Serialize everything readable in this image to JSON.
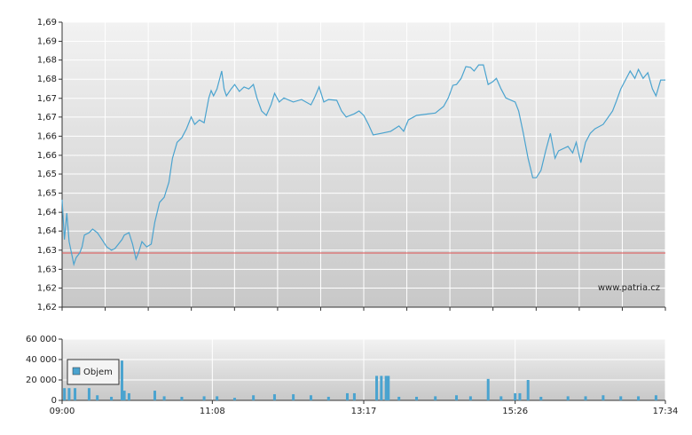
{
  "chart_data": [
    {
      "type": "line",
      "color": "#4aa3cf",
      "annotation": "www.patria.cz",
      "reference_line": {
        "value": 1.6333,
        "color": "#e05050"
      },
      "xlim": [
        540,
        1054
      ],
      "xgrid": [
        540,
        576.7,
        613.4,
        650.1,
        686.9,
        723.6,
        760.3,
        797,
        833.7,
        870.4,
        907.1,
        943.9,
        980.6,
        1017.3,
        1054
      ],
      "ylim": [
        1.62,
        1.69
      ],
      "yticks": [
        {
          "value": 1.62,
          "label": "1,62"
        },
        {
          "value": 1.6247,
          "label": "1,62"
        },
        {
          "value": 1.6293,
          "label": "1,63"
        },
        {
          "value": 1.634,
          "label": "1,63"
        },
        {
          "value": 1.6387,
          "label": "1,64"
        },
        {
          "value": 1.6433,
          "label": "1,64"
        },
        {
          "value": 1.648,
          "label": "1,65"
        },
        {
          "value": 1.6527,
          "label": "1,65"
        },
        {
          "value": 1.6573,
          "label": "1,66"
        },
        {
          "value": 1.662,
          "label": "1,66"
        },
        {
          "value": 1.6667,
          "label": "1,67"
        },
        {
          "value": 1.6713,
          "label": "1,67"
        },
        {
          "value": 1.676,
          "label": "1,68"
        },
        {
          "value": 1.6807,
          "label": "1,68"
        },
        {
          "value": 1.6853,
          "label": "1,69"
        },
        {
          "value": 1.69,
          "label": "1,69"
        }
      ],
      "x": [
        540,
        542,
        544,
        546,
        548,
        550,
        552,
        555,
        557,
        559,
        563,
        566,
        570,
        574,
        578,
        582,
        585,
        591,
        593,
        597,
        600,
        603,
        605,
        608,
        612,
        616,
        619,
        623,
        627,
        631,
        634,
        638,
        642,
        646,
        650,
        653,
        657,
        661,
        665,
        667,
        669,
        672,
        676,
        678,
        680,
        684,
        687,
        691,
        695,
        699,
        703,
        706,
        710,
        714,
        718,
        721,
        725,
        729,
        737,
        744,
        752,
        755,
        759,
        763,
        767,
        774,
        778,
        782,
        789,
        793,
        797,
        801,
        805,
        812,
        820,
        827,
        831,
        835,
        842,
        858,
        865,
        869,
        873,
        876,
        880,
        884,
        888,
        891,
        895,
        899,
        903,
        907,
        910,
        914,
        918,
        926,
        929,
        933,
        937,
        941,
        944,
        948,
        952,
        956,
        960,
        963,
        971,
        975,
        978,
        982,
        986,
        990,
        994,
        1001,
        1009,
        1012,
        1016,
        1020,
        1024,
        1028,
        1031,
        1035,
        1039,
        1043,
        1046,
        1050,
        1054
      ],
      "values": [
        1.6464,
        1.6366,
        1.6431,
        1.6361,
        1.6333,
        1.6305,
        1.6322,
        1.6333,
        1.6348,
        1.6377,
        1.6383,
        1.6392,
        1.6383,
        1.6366,
        1.6348,
        1.634,
        1.6344,
        1.6366,
        1.6377,
        1.6383,
        1.6355,
        1.6318,
        1.6333,
        1.6361,
        1.6348,
        1.6355,
        1.6409,
        1.6457,
        1.647,
        1.6507,
        1.6566,
        1.6605,
        1.6616,
        1.6638,
        1.6667,
        1.6649,
        1.666,
        1.6653,
        1.6714,
        1.6732,
        1.6719,
        1.6736,
        1.678,
        1.6736,
        1.6719,
        1.6736,
        1.6747,
        1.673,
        1.6741,
        1.6736,
        1.6747,
        1.6714,
        1.6682,
        1.6671,
        1.6697,
        1.6725,
        1.6704,
        1.6714,
        1.6704,
        1.671,
        1.6697,
        1.6714,
        1.6741,
        1.6704,
        1.671,
        1.6708,
        1.6682,
        1.6667,
        1.6675,
        1.6682,
        1.6671,
        1.6649,
        1.6623,
        1.6627,
        1.6632,
        1.6645,
        1.6632,
        1.666,
        1.6671,
        1.6677,
        1.6693,
        1.6714,
        1.6745,
        1.6747,
        1.6762,
        1.6791,
        1.6789,
        1.678,
        1.6795,
        1.6795,
        1.6747,
        1.6754,
        1.6762,
        1.6736,
        1.6714,
        1.6704,
        1.6682,
        1.6627,
        1.6566,
        1.6518,
        1.6518,
        1.6536,
        1.6584,
        1.6627,
        1.6566,
        1.6584,
        1.6595,
        1.6579,
        1.6605,
        1.6555,
        1.6605,
        1.6627,
        1.6638,
        1.6649,
        1.6682,
        1.6704,
        1.6736,
        1.6758,
        1.678,
        1.6762,
        1.6784,
        1.6762,
        1.6776,
        1.6736,
        1.6719,
        1.6758,
        1.6758
      ]
    },
    {
      "type": "bar",
      "xlim": [
        540,
        1054
      ],
      "xticks": [
        {
          "value": 540,
          "label": "09:00"
        },
        {
          "value": 668,
          "label": "11:08"
        },
        {
          "value": 797,
          "label": "13:17"
        },
        {
          "value": 926,
          "label": "15:26"
        },
        {
          "value": 1054,
          "label": "17:34"
        }
      ],
      "ylim": [
        0,
        60000
      ],
      "yticks": [
        0,
        {
          "value": 20000,
          "label": "20 000"
        },
        {
          "value": 40000,
          "label": "40 000"
        },
        {
          "value": 60000,
          "label": "60 000"
        }
      ],
      "x": [
        542,
        546,
        551,
        563,
        570,
        582,
        591,
        593,
        597,
        619,
        627,
        642,
        661,
        672,
        687,
        703,
        721,
        737,
        752,
        767,
        783,
        789,
        808,
        812,
        816,
        818,
        827,
        842,
        858,
        876,
        888,
        903,
        914,
        926,
        930,
        937,
        948,
        971,
        986,
        1001,
        1016,
        1031,
        1046
      ],
      "series": [
        {
          "name": "Objem",
          "color": "#4aa3cf",
          "values": [
            12000,
            12000,
            12000,
            12000,
            5000,
            3500,
            39000,
            9500,
            7000,
            9500,
            4000,
            3500,
            4000,
            4000,
            2500,
            5000,
            6000,
            6000,
            5000,
            3500,
            7000,
            7000,
            24000,
            24000,
            24000,
            24000,
            3500,
            3500,
            4000,
            5000,
            4000,
            21000,
            4000,
            7000,
            7000,
            20000,
            3500,
            4000,
            4000,
            5000,
            4000,
            4000,
            5000
          ]
        }
      ]
    }
  ]
}
